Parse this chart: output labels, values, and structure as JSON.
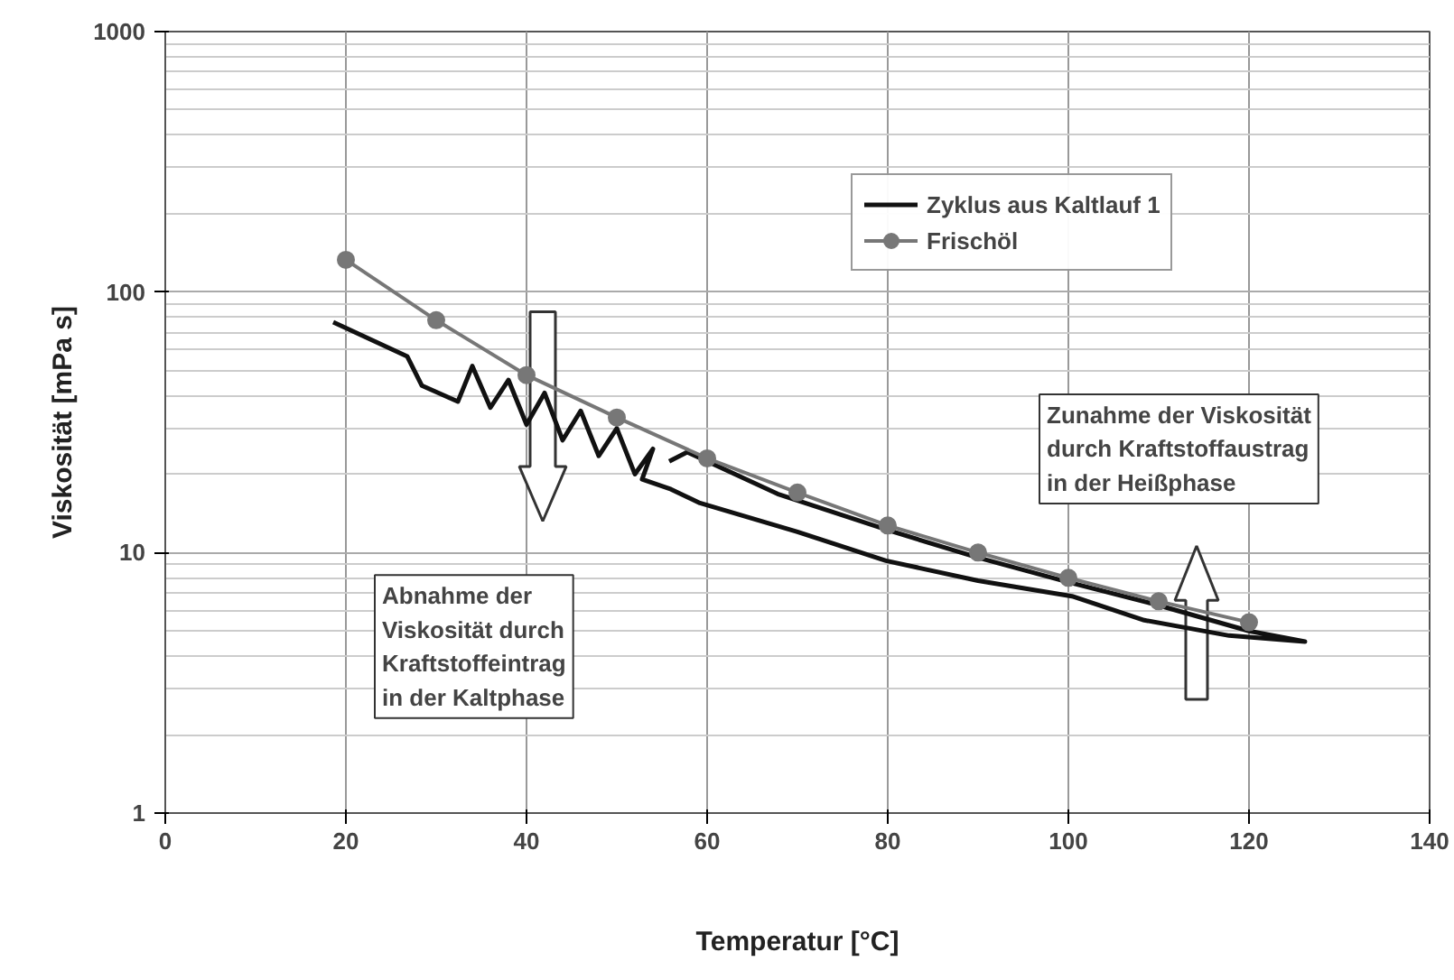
{
  "chart_data": {
    "type": "line",
    "xlabel": "Temperatur [°C]",
    "ylabel": "Viskosität [mPa s]",
    "xlim": [
      0,
      140
    ],
    "xticks": [
      0,
      20,
      40,
      60,
      80,
      100,
      120,
      140
    ],
    "ylim": [
      1,
      1000
    ],
    "yticks": [
      1,
      10,
      100,
      1000
    ],
    "log": true,
    "grid": true,
    "legend": "top",
    "series": [
      {
        "name": "Zyklus aus Kaltlauf 1",
        "color": "#111111",
        "marker": "none",
        "x": [
          18.6,
          26.8,
          28.4,
          32.4,
          34,
          36,
          38,
          40,
          42,
          44,
          46,
          48,
          50,
          52,
          54,
          52.8,
          56,
          59.2,
          70,
          79.8,
          90,
          100.4,
          108.4,
          117.8,
          126.2,
          120,
          109.8,
          100,
          89.8,
          80,
          67.8,
          57.8,
          55.8
        ],
        "values": [
          76.6,
          56.6,
          43.8,
          38,
          52,
          36,
          46,
          31,
          41,
          27,
          35,
          23.5,
          30,
          20,
          25,
          19.1,
          17.5,
          15.5,
          12,
          9.3,
          7.8,
          6.8,
          5.5,
          4.8,
          4.55,
          5.0,
          6.3,
          7.7,
          9.6,
          12.2,
          16.8,
          24.3,
          22.4
        ]
      },
      {
        "name": "Frischöl",
        "color": "#777777",
        "marker": "circle",
        "x": [
          20,
          30,
          40,
          50,
          60,
          70,
          80,
          90,
          100,
          110,
          120
        ],
        "values": [
          133,
          78,
          48,
          33,
          23,
          17,
          12.7,
          10,
          8,
          6.5,
          5.4
        ]
      }
    ],
    "annotations": [
      "Abnahme der\nViskosität durch\nKraftstoffeintrag\nin der Kaltphase",
      "Zunahme der Viskosität\ndurch Kraftstoffaustrag\nin der Heißphase"
    ]
  }
}
